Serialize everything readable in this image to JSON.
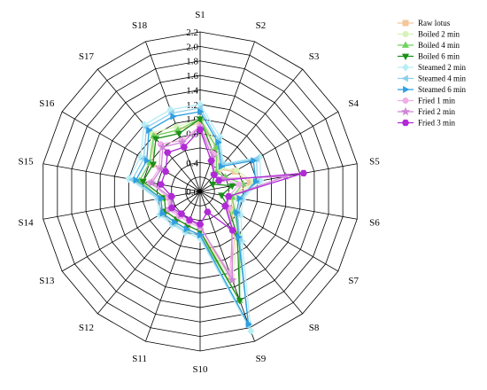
{
  "chart_data": {
    "type": "radar",
    "axes": [
      "S1",
      "S2",
      "S3",
      "S4",
      "S5",
      "S6",
      "S7",
      "S8",
      "S9",
      "S10",
      "S11",
      "S12",
      "S13",
      "S14",
      "S15",
      "S16",
      "S17",
      "S18"
    ],
    "rlim": [
      0,
      2.2
    ],
    "rticks": [
      0.0,
      0.2,
      0.4,
      0.6,
      0.8,
      1.0,
      1.2,
      1.4,
      1.6,
      1.8,
      2.0,
      2.2
    ],
    "rtick_labels": [
      "0.0",
      "",
      "0.4",
      "",
      "0.8",
      "1.0",
      "1.2",
      "1.4",
      "1.6",
      "1.8",
      "2.0",
      "2.2"
    ],
    "grid": true,
    "legend_position": "top-right",
    "series": [
      {
        "name": "Raw lotus",
        "color": "#f2c79a",
        "marker": "square",
        "values": [
          0.95,
          0.65,
          0.4,
          0.55,
          0.7,
          0.45,
          0.5,
          0.75,
          1.25,
          0.55,
          0.5,
          0.5,
          0.55,
          0.5,
          0.8,
          0.75,
          1.0,
          0.9
        ]
      },
      {
        "name": "Boiled 2 min",
        "color": "#d7f3b9",
        "marker": "circle",
        "values": [
          1.0,
          0.7,
          0.42,
          0.58,
          0.75,
          0.5,
          0.55,
          0.8,
          1.3,
          0.6,
          0.55,
          0.55,
          0.6,
          0.55,
          0.85,
          0.8,
          1.05,
          0.95
        ]
      },
      {
        "name": "Boiled 4 min",
        "color": "#6fd35f",
        "marker": "triangle-up",
        "values": [
          1.0,
          0.65,
          0.35,
          0.4,
          0.6,
          0.45,
          0.55,
          0.85,
          1.6,
          0.6,
          0.55,
          0.55,
          0.6,
          0.55,
          0.85,
          0.8,
          1.0,
          0.9
        ]
      },
      {
        "name": "Boiled 6 min",
        "color": "#1a8f1a",
        "marker": "triangle-down",
        "values": [
          1.0,
          0.55,
          0.3,
          0.2,
          0.45,
          0.3,
          0.45,
          0.8,
          1.6,
          0.55,
          0.5,
          0.5,
          0.55,
          0.5,
          0.8,
          0.75,
          0.95,
          0.85
        ]
      },
      {
        "name": "Steamed 2 min",
        "color": "#b8eef5",
        "marker": "diamond",
        "values": [
          1.2,
          0.8,
          0.5,
          0.95,
          0.85,
          0.6,
          0.65,
          0.9,
          2.05,
          0.65,
          0.6,
          0.6,
          0.65,
          0.6,
          1.0,
          0.95,
          1.2,
          1.2
        ]
      },
      {
        "name": "Steamed 4 min",
        "color": "#8fcfea",
        "marker": "triangle-left",
        "values": [
          1.15,
          0.75,
          0.48,
          0.9,
          0.8,
          0.58,
          0.6,
          0.85,
          1.95,
          0.62,
          0.58,
          0.58,
          0.62,
          0.58,
          0.95,
          0.9,
          1.15,
          1.15
        ]
      },
      {
        "name": "Steamed 6 min",
        "color": "#2e9fe0",
        "marker": "triangle-right",
        "values": [
          1.1,
          0.72,
          0.45,
          0.85,
          0.78,
          0.55,
          0.58,
          0.82,
          1.95,
          0.6,
          0.55,
          0.55,
          0.6,
          0.55,
          0.9,
          0.85,
          1.1,
          1.1
        ]
      },
      {
        "name": "Fried 1 min",
        "color": "#efaee6",
        "marker": "circle",
        "values": [
          0.9,
          0.55,
          0.3,
          0.35,
          0.55,
          0.4,
          0.45,
          0.7,
          1.2,
          0.5,
          0.45,
          0.45,
          0.5,
          0.45,
          0.7,
          0.65,
          0.85,
          0.75
        ]
      },
      {
        "name": "Fried 2 min",
        "color": "#cf84d8",
        "marker": "star",
        "values": [
          0.88,
          0.5,
          0.3,
          0.35,
          1.2,
          0.4,
          0.42,
          0.68,
          1.3,
          0.48,
          0.42,
          0.42,
          0.48,
          0.42,
          0.68,
          0.62,
          0.8,
          0.72
        ]
      },
      {
        "name": "Fried 3 min",
        "color": "#b02ad6",
        "marker": "hexagon",
        "values": [
          0.85,
          0.45,
          0.3,
          0.3,
          1.45,
          0.4,
          0.4,
          0.7,
          0.3,
          0.45,
          0.42,
          0.4,
          0.45,
          0.4,
          0.55,
          0.55,
          0.7,
          0.65
        ]
      }
    ]
  }
}
